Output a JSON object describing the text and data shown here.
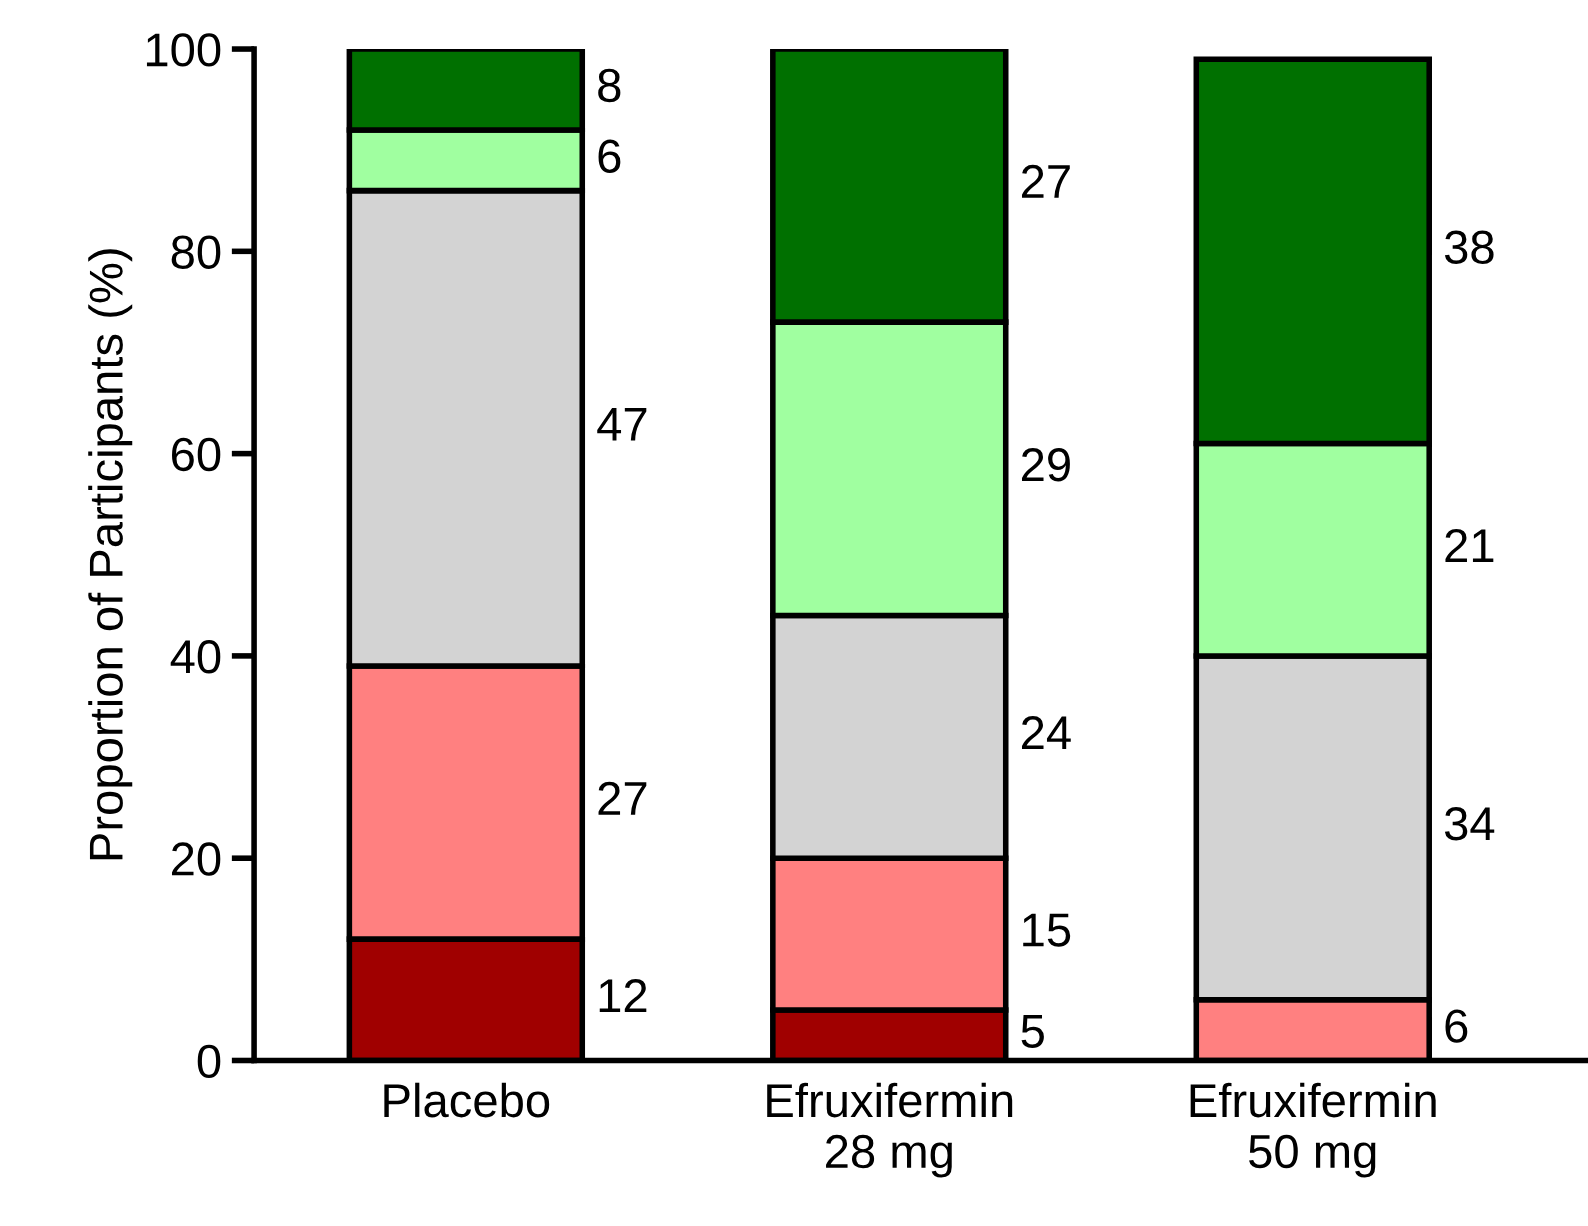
{
  "chart_data": {
    "type": "bar",
    "stacked": true,
    "ylabel": "Proportion of Participants (%)",
    "categories": [
      "Placebo",
      "Efruxifermin\n28 mg",
      "Efruxifermin\n50 mg"
    ],
    "ylim": [
      0,
      100
    ],
    "yticks": [
      0,
      20,
      40,
      60,
      80,
      100
    ],
    "grid": false,
    "legend": false,
    "series": [
      {
        "color": "#a00000",
        "values": [
          12,
          5,
          0
        ],
        "value_labels": [
          "12",
          "5",
          null
        ]
      },
      {
        "color": "#ff8080",
        "values": [
          27,
          15,
          6
        ],
        "value_labels": [
          "27",
          "15",
          "6"
        ]
      },
      {
        "color": "#d3d3d3",
        "values": [
          47,
          24,
          34
        ],
        "value_labels": [
          "47",
          "24",
          "34"
        ]
      },
      {
        "color": "#a0ffa0",
        "values": [
          6,
          29,
          21
        ],
        "value_labels": [
          "6",
          "29",
          "21"
        ]
      },
      {
        "color": "#007000",
        "values": [
          8,
          27,
          38
        ],
        "value_labels": [
          "8",
          "27",
          "38"
        ]
      }
    ]
  }
}
